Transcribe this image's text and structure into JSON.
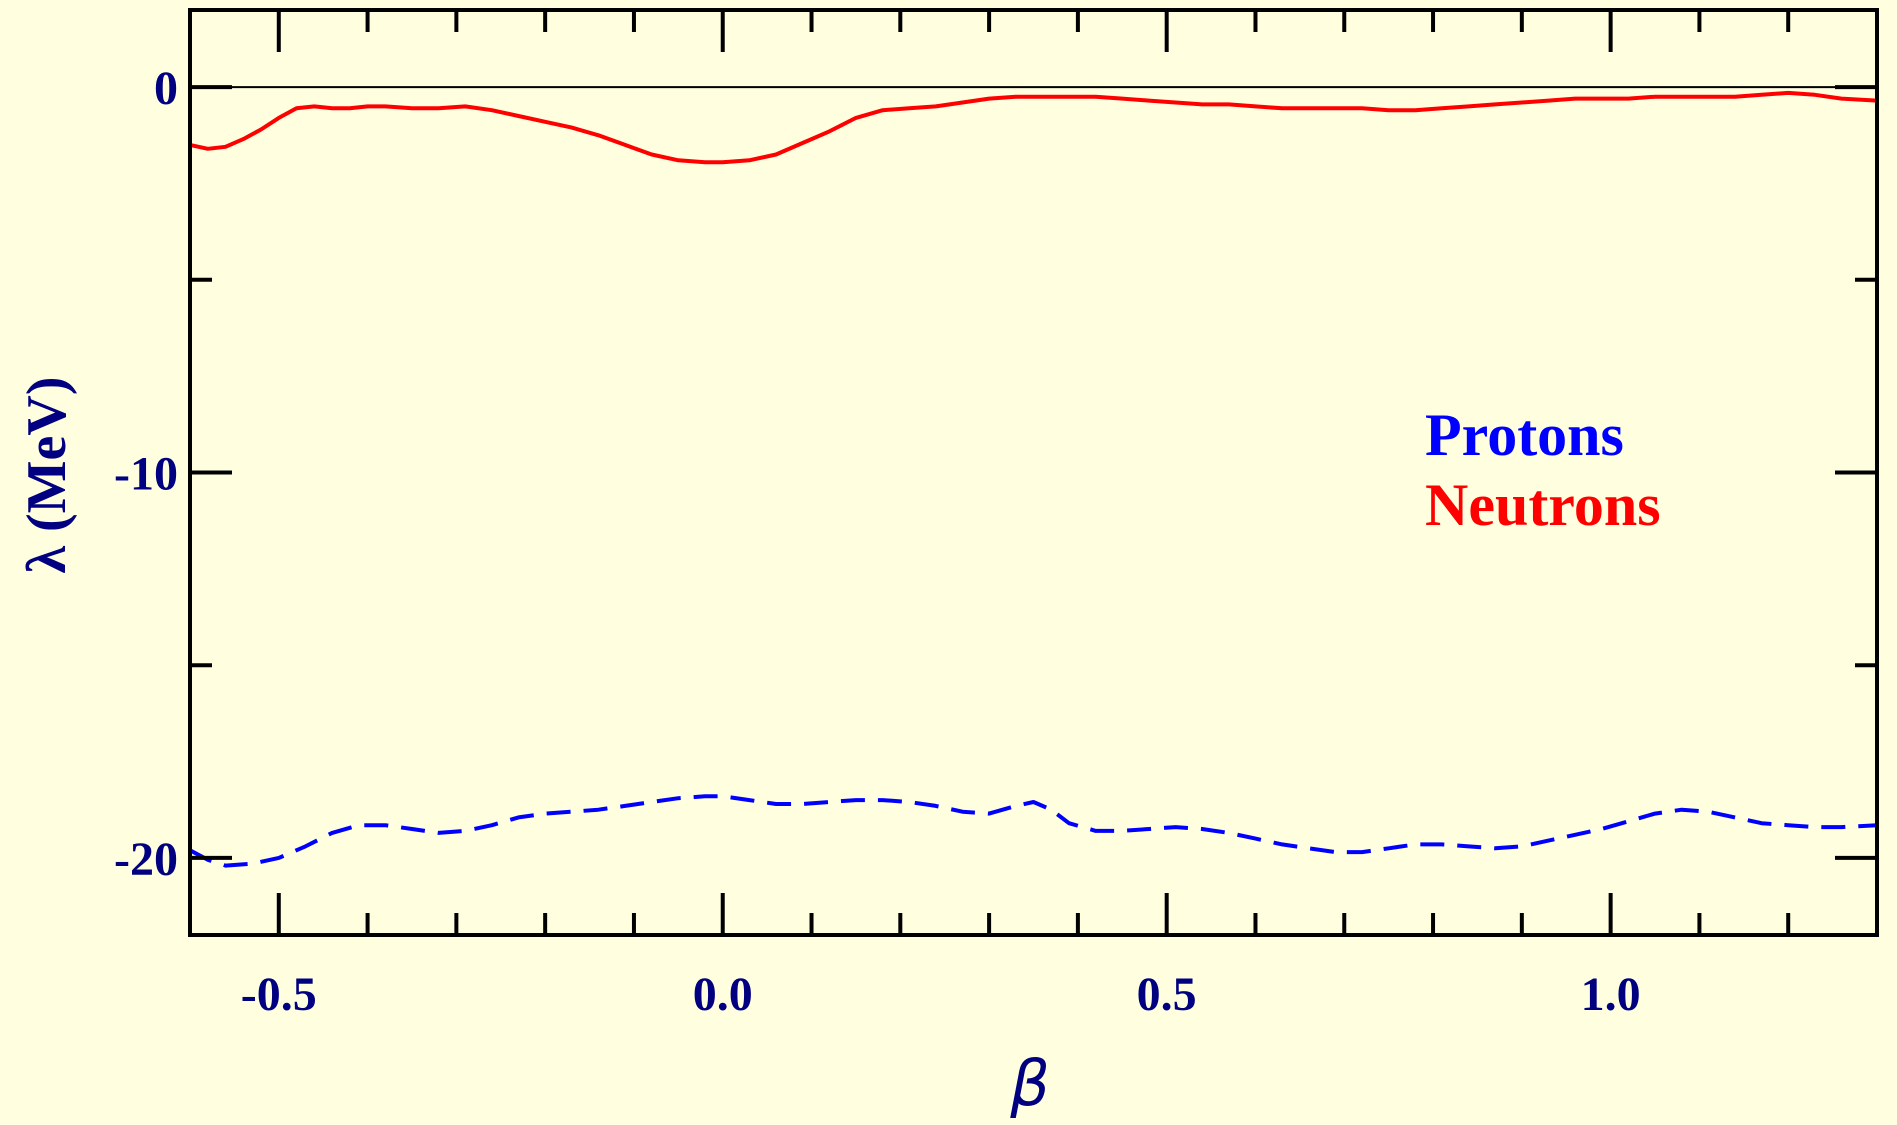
{
  "chart_data": {
    "type": "line",
    "xlabel": "β",
    "ylabel": "λ (MeV)",
    "xlim": [
      -0.6,
      1.3
    ],
    "ylim": [
      -22,
      2
    ],
    "x_ticks": [
      {
        "value": -0.5,
        "label": "-0.5"
      },
      {
        "value": 0.0,
        "label": "0.0"
      },
      {
        "value": 0.5,
        "label": "0.5"
      },
      {
        "value": 1.0,
        "label": "1.0"
      }
    ],
    "x_minor_step": 0.1,
    "y_ticks": [
      {
        "value": 0,
        "label": "0"
      },
      {
        "value": -10,
        "label": "-10"
      },
      {
        "value": -20,
        "label": "-20"
      }
    ],
    "y_minor_step": 5,
    "reference_line_y": 0,
    "legend_position": "right-middle",
    "series": [
      {
        "name": "Protons",
        "color": "#0000ff",
        "dash": "dashed",
        "x": [
          -0.6,
          -0.58,
          -0.56,
          -0.53,
          -0.5,
          -0.47,
          -0.44,
          -0.41,
          -0.38,
          -0.35,
          -0.32,
          -0.29,
          -0.26,
          -0.23,
          -0.2,
          -0.17,
          -0.14,
          -0.11,
          -0.08,
          -0.05,
          -0.02,
          0.0,
          0.03,
          0.06,
          0.09,
          0.12,
          0.15,
          0.18,
          0.21,
          0.24,
          0.27,
          0.3,
          0.33,
          0.35,
          0.37,
          0.39,
          0.42,
          0.45,
          0.48,
          0.51,
          0.54,
          0.57,
          0.6,
          0.63,
          0.66,
          0.69,
          0.72,
          0.75,
          0.78,
          0.81,
          0.84,
          0.87,
          0.9,
          0.93,
          0.96,
          0.99,
          1.02,
          1.05,
          1.08,
          1.11,
          1.14,
          1.17,
          1.2,
          1.23,
          1.26,
          1.3
        ],
        "y": [
          -19.8,
          -20.05,
          -20.2,
          -20.15,
          -20.0,
          -19.7,
          -19.35,
          -19.15,
          -19.15,
          -19.25,
          -19.35,
          -19.3,
          -19.15,
          -18.95,
          -18.85,
          -18.8,
          -18.75,
          -18.65,
          -18.55,
          -18.45,
          -18.4,
          -18.4,
          -18.5,
          -18.6,
          -18.6,
          -18.55,
          -18.5,
          -18.5,
          -18.55,
          -18.65,
          -18.8,
          -18.85,
          -18.65,
          -18.55,
          -18.75,
          -19.1,
          -19.3,
          -19.3,
          -19.25,
          -19.2,
          -19.25,
          -19.35,
          -19.5,
          -19.65,
          -19.75,
          -19.85,
          -19.85,
          -19.75,
          -19.65,
          -19.65,
          -19.7,
          -19.75,
          -19.7,
          -19.55,
          -19.4,
          -19.25,
          -19.05,
          -18.85,
          -18.75,
          -18.8,
          -18.95,
          -19.1,
          -19.15,
          -19.2,
          -19.2,
          -19.15
        ]
      },
      {
        "name": "Neutrons",
        "color": "#ff0000",
        "dash": "solid",
        "x": [
          -0.6,
          -0.58,
          -0.56,
          -0.54,
          -0.52,
          -0.5,
          -0.48,
          -0.46,
          -0.44,
          -0.42,
          -0.4,
          -0.38,
          -0.35,
          -0.32,
          -0.29,
          -0.26,
          -0.23,
          -0.2,
          -0.17,
          -0.14,
          -0.11,
          -0.08,
          -0.05,
          -0.02,
          0.0,
          0.03,
          0.06,
          0.09,
          0.12,
          0.15,
          0.18,
          0.21,
          0.24,
          0.27,
          0.3,
          0.33,
          0.36,
          0.39,
          0.42,
          0.45,
          0.48,
          0.51,
          0.54,
          0.57,
          0.6,
          0.63,
          0.66,
          0.69,
          0.72,
          0.75,
          0.78,
          0.81,
          0.84,
          0.87,
          0.9,
          0.93,
          0.96,
          0.99,
          1.02,
          1.05,
          1.08,
          1.11,
          1.14,
          1.17,
          1.2,
          1.23,
          1.26,
          1.3
        ],
        "y": [
          -1.5,
          -1.6,
          -1.55,
          -1.35,
          -1.1,
          -0.8,
          -0.55,
          -0.5,
          -0.55,
          -0.55,
          -0.5,
          -0.5,
          -0.55,
          -0.55,
          -0.5,
          -0.6,
          -0.75,
          -0.9,
          -1.05,
          -1.25,
          -1.5,
          -1.75,
          -1.9,
          -1.95,
          -1.95,
          -1.9,
          -1.75,
          -1.45,
          -1.15,
          -0.8,
          -0.6,
          -0.55,
          -0.5,
          -0.4,
          -0.3,
          -0.25,
          -0.25,
          -0.25,
          -0.25,
          -0.3,
          -0.35,
          -0.4,
          -0.45,
          -0.45,
          -0.5,
          -0.55,
          -0.55,
          -0.55,
          -0.55,
          -0.6,
          -0.6,
          -0.55,
          -0.5,
          -0.45,
          -0.4,
          -0.35,
          -0.3,
          -0.3,
          -0.3,
          -0.25,
          -0.25,
          -0.25,
          -0.25,
          -0.2,
          -0.15,
          -0.2,
          -0.3,
          -0.35
        ]
      }
    ]
  }
}
